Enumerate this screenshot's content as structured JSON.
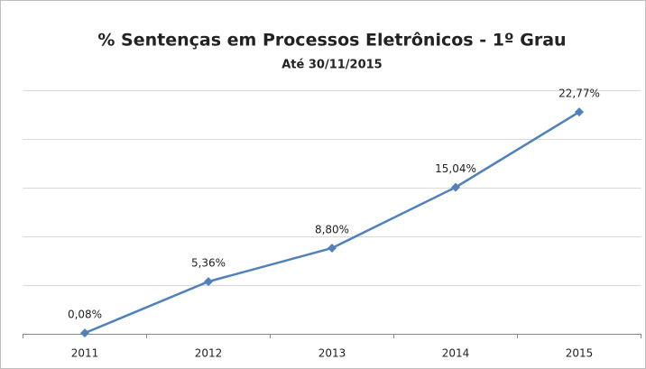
{
  "chart_data": {
    "type": "line",
    "title": "% Sentenças em Processos Eletrônicos - 1º Grau",
    "subtitle": "Até 30/11/2015",
    "categories": [
      "2011",
      "2012",
      "2013",
      "2014",
      "2015"
    ],
    "series": [
      {
        "name": null,
        "color": "#4f81bd",
        "values": [
          0.08,
          5.36,
          8.8,
          15.04,
          22.77
        ],
        "value_labels": [
          "0,08%",
          "5,36%",
          "8,80%",
          "15,04%",
          "22,77%"
        ]
      }
    ],
    "ylim": [
      0,
      25
    ],
    "yticks": [
      0,
      5,
      10,
      15,
      20,
      25
    ],
    "grid": true
  }
}
